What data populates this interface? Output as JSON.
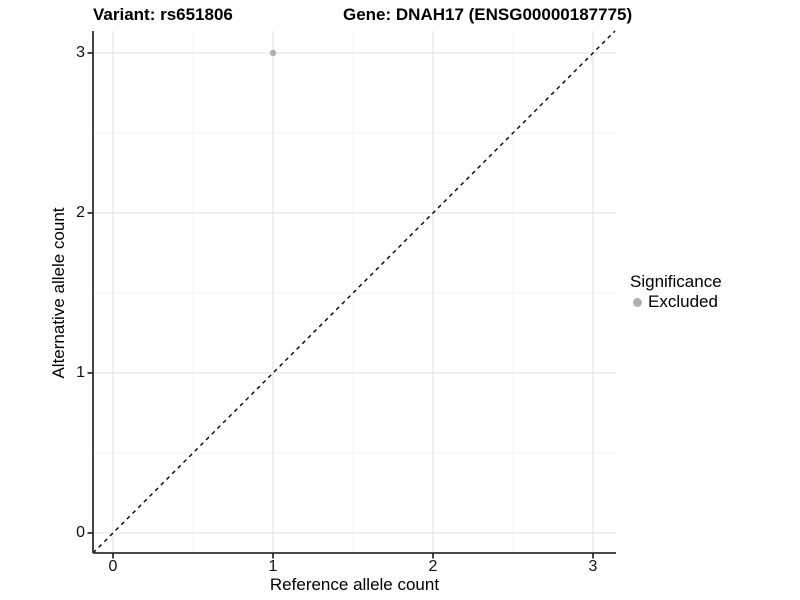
{
  "titles": {
    "variant": "Variant: rs651806",
    "gene": "Gene: DNAH17 (ENSG00000187775)"
  },
  "axes": {
    "x": {
      "label": "Reference allele count",
      "ticks": [
        "0",
        "1",
        "2",
        "3"
      ]
    },
    "y": {
      "label": "Alternative allele count",
      "ticks": [
        "0",
        "1",
        "2",
        "3"
      ]
    }
  },
  "legend": {
    "title": "Significance",
    "items": [
      {
        "label": "Excluded",
        "color": "#b0b0b0"
      }
    ]
  },
  "colors": {
    "background": "#ffffff",
    "grid_major": "#e6e6e6",
    "grid_minor": "#f3f3f3",
    "axis": "#2f2f2f",
    "tick": "#2f2f2f",
    "reference_line": "#000000",
    "text": "#000000"
  },
  "chart_data": {
    "type": "scatter",
    "title_left": "Variant: rs651806",
    "title_right": "Gene: DNAH17 (ENSG00000187775)",
    "xlabel": "Reference allele count",
    "ylabel": "Alternative allele count",
    "xlim": [
      -0.13,
      3.15
    ],
    "ylim": [
      -0.13,
      3.15
    ],
    "x_ticks": [
      0,
      1,
      2,
      3
    ],
    "y_ticks": [
      0,
      1,
      2,
      3
    ],
    "grid": {
      "major": [
        0,
        1,
        2,
        3
      ],
      "minor": [
        0.5,
        1.5,
        2.5
      ],
      "on": true
    },
    "series": [
      {
        "name": "Excluded",
        "color": "#b0b0b0",
        "points": [
          {
            "x": 1,
            "y": 3
          }
        ]
      }
    ],
    "reference_line": {
      "kind": "identity y=x",
      "style": "dashed",
      "color": "#000000"
    },
    "legend_position": "right-middle"
  }
}
